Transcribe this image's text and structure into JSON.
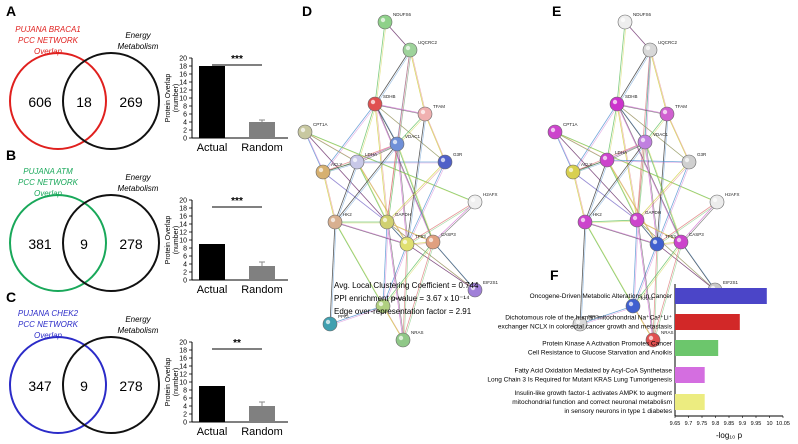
{
  "panel_letters": [
    "A",
    "B",
    "C",
    "D",
    "E",
    "F"
  ],
  "venns": [
    {
      "left_label_lines": [
        "PUJANA BRACA1",
        "PCC NETWORK",
        "Overlap"
      ],
      "left_color": "#e0201e",
      "right_label_lines": [
        "Energy",
        "Metabolism"
      ],
      "left_only": "606",
      "overlap": "18",
      "right_only": "269"
    },
    {
      "left_label_lines": [
        "PUJANA ATM",
        "PCC NETWORK",
        "Overlap"
      ],
      "left_color": "#19a85a",
      "right_label_lines": [
        "Energy",
        "Metabolism"
      ],
      "left_only": "381",
      "overlap": "9",
      "right_only": "278"
    },
    {
      "left_label_lines": [
        "PUJANA CHEK2",
        "PCC NETWORK",
        "Overlap"
      ],
      "left_color": "#2b2bc8",
      "right_label_lines": [
        "Energy",
        "Metabolism"
      ],
      "left_only": "347",
      "overlap": "9",
      "right_only": "278"
    }
  ],
  "chart_data": [
    {
      "type": "bar",
      "categories": [
        "Actual",
        "Random"
      ],
      "values": [
        18,
        4
      ],
      "errors": [
        0,
        0.5
      ],
      "colors": [
        "#000000",
        "#808080"
      ],
      "ylabel_lines": [
        "Protein Overlap",
        "(number)"
      ],
      "ylim": [
        0,
        20
      ],
      "yticks": [
        0,
        2,
        4,
        6,
        8,
        10,
        12,
        14,
        16,
        18,
        20
      ],
      "significance": "***"
    },
    {
      "type": "bar",
      "categories": [
        "Actual",
        "Random"
      ],
      "values": [
        9,
        3.5
      ],
      "errors": [
        0,
        1
      ],
      "colors": [
        "#000000",
        "#808080"
      ],
      "ylabel_lines": [
        "Protein Overlap",
        "(number)"
      ],
      "ylim": [
        0,
        20
      ],
      "yticks": [
        0,
        2,
        4,
        6,
        8,
        10,
        12,
        14,
        16,
        18,
        20
      ],
      "significance": "***"
    },
    {
      "type": "bar",
      "categories": [
        "Actual",
        "Random"
      ],
      "values": [
        9,
        4
      ],
      "errors": [
        0,
        1
      ],
      "colors": [
        "#000000",
        "#808080"
      ],
      "ylabel_lines": [
        "Protein Overlap",
        "(number)"
      ],
      "ylim": [
        0,
        20
      ],
      "yticks": [
        0,
        2,
        4,
        6,
        8,
        10,
        12,
        14,
        16,
        18,
        20
      ],
      "significance": "**"
    },
    {
      "type": "bar",
      "orientation": "horizontal",
      "categories": [
        [
          "Oncogene-Driven Metabolic Alterations in Cancer"
        ],
        [
          "Dichotomous role of the human mitochondrial Na⁺Ca²⁺Li⁺",
          "exchanger NCLX in colorectal cancer growth and metastasis"
        ],
        [
          "Protein Kinase A Activation Promotes Cancer",
          "Cell Resistance to Glucose Starvation and Anoikis"
        ],
        [
          "Fatty Acid Oxidation Mediated by Acyl-CoA Synthetase",
          "Long Chain 3 Is Required for Mutant KRAS Lung Tumorigenesis"
        ],
        [
          "Insulin-like growth factor-1 activates AMPK to augment",
          "mitochondrial function and correct neuronal metabolism",
          "in sensory neurons in type 1 diabetes"
        ]
      ],
      "values": [
        9.99,
        9.89,
        9.81,
        9.76,
        9.76
      ],
      "colors": [
        "#4b45c8",
        "#d22828",
        "#6cc66c",
        "#d46ee0",
        "#ecec80"
      ],
      "xlim": [
        9.65,
        10.05
      ],
      "xticks": [
        "9.65",
        "9.7",
        "9.75",
        "9.8",
        "9.85",
        "9.9",
        "9.95",
        "10",
        "10.05"
      ],
      "xlabel": "-log₁₀ p"
    }
  ],
  "network_stats": [
    "Avg. Local Clustering Coefficient = 0.744",
    "PPI enrichment p-value = 3.67 x 10⁻¹⁴",
    "Edge over-representation factor = 2.91"
  ],
  "network": {
    "nodes": [
      {
        "id": "NDUFS6",
        "d": [
          80,
          0
        ],
        "e": [
          70,
          0
        ],
        "color": "#8fd18a",
        "ecolor": "#eeeeee"
      },
      {
        "id": "UQCRC2",
        "d": [
          105,
          28
        ],
        "e": [
          95,
          28
        ],
        "color": "#9ed39b",
        "ecolor": "#d8d8d8"
      },
      {
        "id": "SDHB",
        "d": [
          70,
          82
        ],
        "e": [
          62,
          82
        ],
        "color": "#e05050",
        "ecolor": "#cc33cc"
      },
      {
        "id": "TFAM",
        "d": [
          120,
          92
        ],
        "e": [
          112,
          92
        ],
        "color": "#f0b0b0",
        "ecolor": "#d060d0"
      },
      {
        "id": "CPT1A",
        "d": [
          0,
          110
        ],
        "e": [
          0,
          110
        ],
        "color": "#c8c8a0",
        "ecolor": "#cc44cc"
      },
      {
        "id": "ACLY",
        "d": [
          18,
          150
        ],
        "e": [
          18,
          150
        ],
        "color": "#d6b070",
        "ecolor": "#d8d050"
      },
      {
        "id": "LDHA",
        "d": [
          52,
          140
        ],
        "e": [
          52,
          138
        ],
        "color": "#c8c8e8",
        "ecolor": "#cc44cc"
      },
      {
        "id": "VDAC1",
        "d": [
          92,
          122
        ],
        "e": [
          90,
          120
        ],
        "color": "#7090d8",
        "ecolor": "#c080e0"
      },
      {
        "id": "G3R",
        "d": [
          140,
          140
        ],
        "e": [
          134,
          140
        ],
        "color": "#5060c8",
        "ecolor": "#d0d0d0"
      },
      {
        "id": "H2AFX",
        "d": [
          170,
          180
        ],
        "e": [
          162,
          180
        ],
        "color": "#f0f0f0",
        "ecolor": "#ececec"
      },
      {
        "id": "GAPDH",
        "d": [
          82,
          200
        ],
        "e": [
          82,
          198
        ],
        "color": "#d0d070",
        "ecolor": "#cc44cc"
      },
      {
        "id": "HK2",
        "d": [
          30,
          200
        ],
        "e": [
          30,
          200
        ],
        "color": "#d8b090",
        "ecolor": "#cc44cc"
      },
      {
        "id": "TP53",
        "d": [
          102,
          222
        ],
        "e": [
          102,
          222
        ],
        "color": "#e0e070",
        "ecolor": "#4060d0"
      },
      {
        "id": "CASP3",
        "d": [
          128,
          220
        ],
        "e": [
          126,
          220
        ],
        "color": "#e0a080",
        "ecolor": "#cc44cc"
      },
      {
        "id": "EIF2S1",
        "d": [
          170,
          268
        ],
        "e": [
          160,
          268
        ],
        "color": "#a080d8",
        "ecolor": "#c8c8c8"
      },
      {
        "id": "PPIG",
        "d": [
          25,
          302
        ],
        "e": [
          25,
          302
        ],
        "color": "#40a0b0",
        "ecolor": "#dadada"
      },
      {
        "id": "KRAS",
        "d": [
          78,
          284
        ],
        "e": [
          78,
          284
        ],
        "color": "#b0d080",
        "ecolor": "#4060d0"
      },
      {
        "id": "NRAS",
        "d": [
          98,
          318
        ],
        "e": [
          98,
          318
        ],
        "color": "#90c888",
        "ecolor": "#e05050"
      }
    ]
  }
}
